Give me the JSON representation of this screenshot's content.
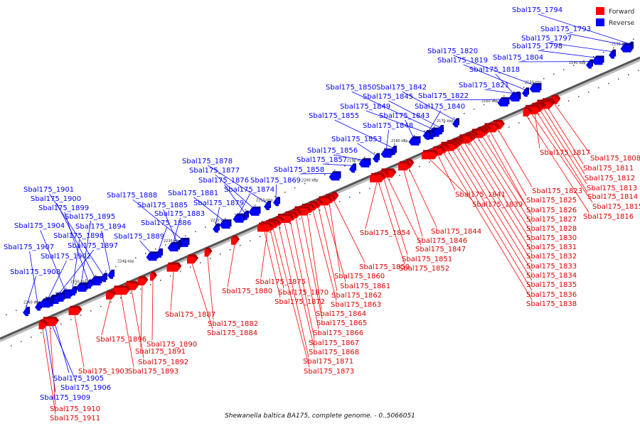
{
  "caption": "Shewanella baltica BA175, complete genome. - 0..5066051",
  "legend": [
    {
      "label": "Forward",
      "color": "#ff0000"
    },
    {
      "label": "Reverse",
      "color": "#0000ff"
    }
  ],
  "colors": {
    "forward": "#ff0000",
    "reverse": "#0000ff",
    "backbone": "#555555"
  },
  "ticks": [
    "2130 kbp",
    "2140 kbp",
    "2150 kbp",
    "2160 kbp",
    "2170 kbp",
    "2180 kbp",
    "2190 kbp",
    "2200 kbp",
    "2210 kbp",
    "2220 kbp",
    "2230 kbp",
    "2240 kbp",
    "2250 kbp",
    "2260 kbp"
  ],
  "reverse_genes": [
    "Sbal175_1794",
    "Sbal175_1793",
    "Sbal175_1797",
    "Sbal175_1798",
    "Sbal175_1804",
    "Sbal175_1820",
    "Sbal175_1819",
    "Sbal175_1818",
    "Sbal175_1821",
    "Sbal175_1822",
    "Sbal175_1842",
    "Sbal175_1850",
    "Sbal175_1845",
    "Sbal175_1840",
    "Sbal175_1849",
    "Sbal175_1843",
    "Sbal175_1855",
    "Sbal175_1848",
    "Sbal175_1853",
    "Sbal175_1856",
    "Sbal175_1857",
    "Sbal175_1858",
    "Sbal175_1878",
    "Sbal175_1877",
    "Sbal175_1876",
    "Sbal175_1874",
    "Sbal175_1869",
    "Sbal175_1881",
    "Sbal175_1879",
    "Sbal175_1888",
    "Sbal175_1885",
    "Sbal175_1883",
    "Sbal175_1886",
    "Sbal175_1889",
    "Sbal175_1901",
    "Sbal175_1900",
    "Sbal175_1899",
    "Sbal175_1895",
    "Sbal175_1894",
    "Sbal175_1904",
    "Sbal175_1898",
    "Sbal175_1897",
    "Sbal175_1907",
    "Sbal175_1902",
    "Sbal175_1908",
    "Sbal175_1905",
    "Sbal175_1906",
    "Sbal175_1909"
  ],
  "forward_genes": [
    "Sbal175_1817",
    "Sbal175_1808",
    "Sbal175_1811",
    "Sbal175_1812",
    "Sbal175_1813",
    "Sbal175_1814",
    "Sbal175_1815",
    "Sbal175_1816",
    "Sbal175_1823",
    "Sbal175_1825",
    "Sbal175_1826",
    "Sbal175_1827",
    "Sbal175_1828",
    "Sbal175_1830",
    "Sbal175_1831",
    "Sbal175_1832",
    "Sbal175_1833",
    "Sbal175_1834",
    "Sbal175_1835",
    "Sbal175_1836",
    "Sbal175_1838",
    "Sbal175_1841",
    "Sbal175_1839",
    "Sbal175_1844",
    "Sbal175_1846",
    "Sbal175_1847",
    "Sbal175_1851",
    "Sbal175_1852",
    "Sbal175_1854",
    "Sbal175_1859",
    "Sbal175_1860",
    "Sbal175_1861",
    "Sbal175_1862",
    "Sbal175_1863",
    "Sbal175_1864",
    "Sbal175_1865",
    "Sbal175_1866",
    "Sbal175_1867",
    "Sbal175_1868",
    "Sbal175_1871",
    "Sbal175_1873",
    "Sbal175_1875",
    "Sbal175_1880",
    "Sbal175_1870",
    "Sbal175_1872",
    "Sbal175_1882",
    "Sbal175_1884",
    "Sbal175_1887",
    "Sbal175_1890",
    "Sbal175_1891",
    "Sbal175_1892",
    "Sbal175_1893",
    "Sbal175_1896",
    "Sbal175_1903",
    "Sbal175_1910",
    "Sbal175_1911"
  ]
}
